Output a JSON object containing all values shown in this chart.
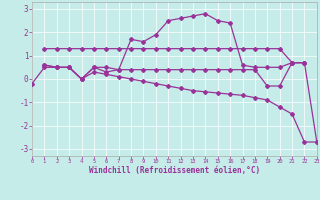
{
  "xlabel": "Windchill (Refroidissement éolien,°C)",
  "bg_color": "#c5ece8",
  "grid_color": "#ffffff",
  "line_color": "#993399",
  "xlim": [
    0,
    23
  ],
  "ylim": [
    -3.3,
    3.3
  ],
  "yticks": [
    -3,
    -2,
    -1,
    0,
    1,
    2,
    3
  ],
  "xticks": [
    0,
    1,
    2,
    3,
    4,
    5,
    6,
    7,
    8,
    9,
    10,
    11,
    12,
    13,
    14,
    15,
    16,
    17,
    18,
    19,
    20,
    21,
    22,
    23
  ],
  "lines": [
    {
      "x": [
        1,
        2,
        3,
        4,
        5,
        6,
        7,
        8,
        9,
        10,
        11,
        12,
        13,
        14,
        15,
        16,
        17,
        18,
        19,
        20,
        21,
        22
      ],
      "y": [
        1.3,
        1.3,
        1.3,
        1.3,
        1.3,
        1.3,
        1.3,
        1.3,
        1.3,
        1.3,
        1.3,
        1.3,
        1.3,
        1.3,
        1.3,
        1.3,
        1.3,
        1.3,
        1.3,
        1.3,
        0.7,
        0.7
      ]
    },
    {
      "x": [
        1,
        2,
        3,
        4,
        5,
        6,
        7,
        8,
        9,
        10,
        11,
        12,
        13,
        14,
        15,
        16,
        17,
        18,
        19,
        20,
        21,
        22
      ],
      "y": [
        0.6,
        0.5,
        0.5,
        0.0,
        0.5,
        0.5,
        0.4,
        0.4,
        0.4,
        0.4,
        0.4,
        0.4,
        0.4,
        0.4,
        0.4,
        0.4,
        0.4,
        0.4,
        -0.3,
        -0.3,
        0.7,
        0.7
      ]
    },
    {
      "x": [
        0,
        1,
        2,
        3,
        4,
        5,
        6,
        7,
        8,
        9,
        10,
        11,
        12,
        13,
        14,
        15,
        16,
        17,
        18,
        19,
        20,
        21,
        22,
        23
      ],
      "y": [
        -0.2,
        0.5,
        0.5,
        0.5,
        0.0,
        0.3,
        0.2,
        0.1,
        0.0,
        -0.1,
        -0.2,
        -0.3,
        -0.4,
        -0.5,
        -0.55,
        -0.6,
        -0.65,
        -0.7,
        -0.8,
        -0.9,
        -1.2,
        -1.5,
        -2.7,
        -2.7
      ]
    },
    {
      "x": [
        1,
        2,
        3,
        4,
        5,
        6,
        7,
        8,
        9,
        10,
        11,
        12,
        13,
        14,
        15,
        16,
        17,
        18,
        19,
        20,
        21,
        22,
        23
      ],
      "y": [
        0.6,
        0.5,
        0.5,
        0.0,
        0.5,
        0.3,
        0.4,
        1.7,
        1.6,
        1.9,
        2.5,
        2.6,
        2.7,
        2.8,
        2.5,
        2.4,
        0.6,
        0.5,
        0.5,
        0.5,
        0.7,
        0.7,
        -2.7
      ]
    }
  ]
}
